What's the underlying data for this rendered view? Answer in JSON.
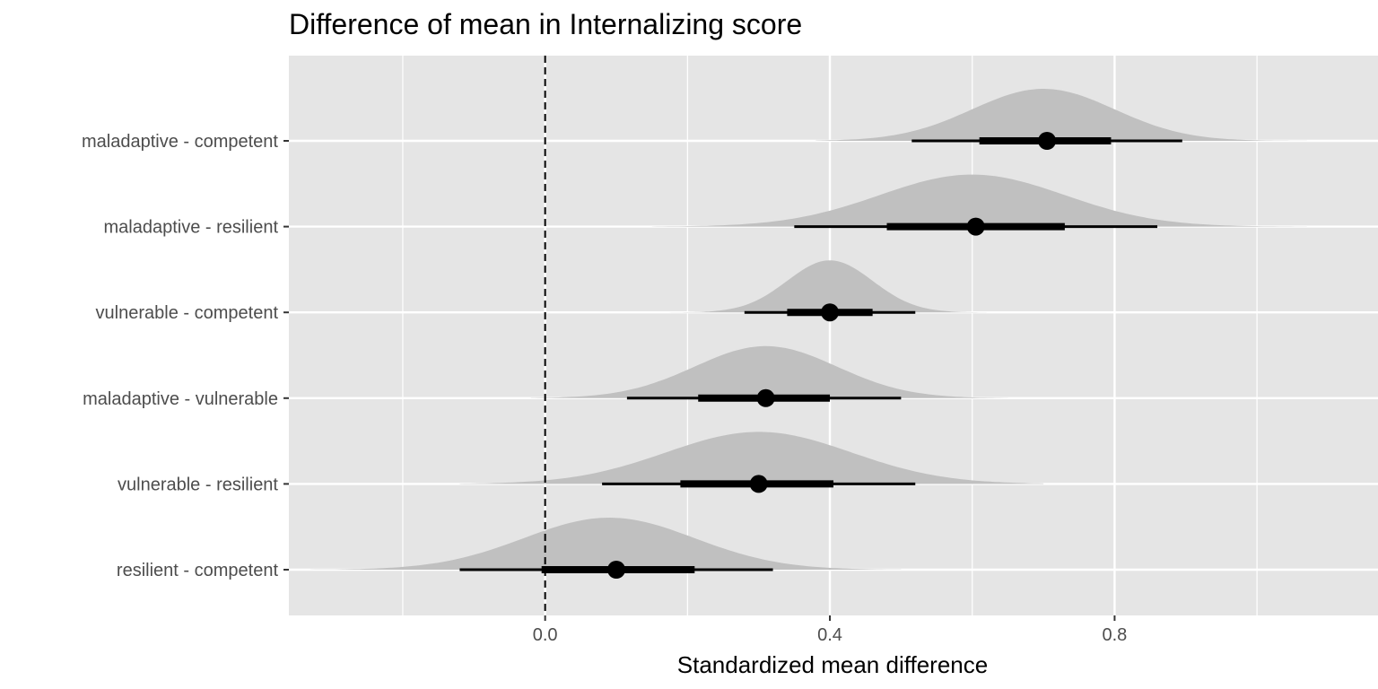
{
  "chart_data": {
    "type": "halfeye",
    "title": "Difference of mean in Internalizing score",
    "xlabel": "Standardized mean difference",
    "ylabel": "",
    "xlim": [
      -0.36,
      1.17
    ],
    "x_ticks": [
      0.0,
      0.4,
      0.8
    ],
    "x_tick_labels": [
      "0.0",
      "0.4",
      "0.8"
    ],
    "x_minor_gridlines": [
      -0.2,
      0.2,
      0.6,
      1.0
    ],
    "reference_line": {
      "x": 0.0,
      "style": "dashed"
    },
    "grid": true,
    "colors": {
      "panel": "#e5e5e5",
      "density": "#c0c0c0",
      "point": "#000000",
      "grid": "#ffffff"
    },
    "comparisons": [
      {
        "label": "maladaptive - competent",
        "median": 0.705,
        "ci66": [
          0.61,
          0.795
        ],
        "ci95": [
          0.515,
          0.895
        ],
        "density_mean": 0.7,
        "density_sd": 0.1,
        "density_range": [
          0.38,
          1.07
        ]
      },
      {
        "label": "maladaptive - resilient",
        "median": 0.605,
        "ci66": [
          0.48,
          0.73
        ],
        "ci95": [
          0.35,
          0.86
        ],
        "density_mean": 0.6,
        "density_sd": 0.13,
        "density_range": [
          0.15,
          1.07
        ]
      },
      {
        "label": "vulnerable - competent",
        "median": 0.4,
        "ci66": [
          0.34,
          0.46
        ],
        "ci95": [
          0.28,
          0.52
        ],
        "density_mean": 0.4,
        "density_sd": 0.06,
        "density_range": [
          0.17,
          0.62
        ]
      },
      {
        "label": "maladaptive - vulnerable",
        "median": 0.31,
        "ci66": [
          0.215,
          0.4
        ],
        "ci95": [
          0.115,
          0.5
        ],
        "density_mean": 0.31,
        "density_sd": 0.1,
        "density_range": [
          -0.02,
          0.65
        ]
      },
      {
        "label": "vulnerable - resilient",
        "median": 0.3,
        "ci66": [
          0.19,
          0.405
        ],
        "ci95": [
          0.08,
          0.52
        ],
        "density_mean": 0.3,
        "density_sd": 0.13,
        "density_range": [
          -0.12,
          0.7
        ]
      },
      {
        "label": "resilient - competent",
        "median": 0.1,
        "ci66": [
          -0.005,
          0.21
        ],
        "ci95": [
          -0.12,
          0.32
        ],
        "density_mean": 0.09,
        "density_sd": 0.12,
        "density_range": [
          -0.33,
          0.5
        ]
      }
    ]
  }
}
